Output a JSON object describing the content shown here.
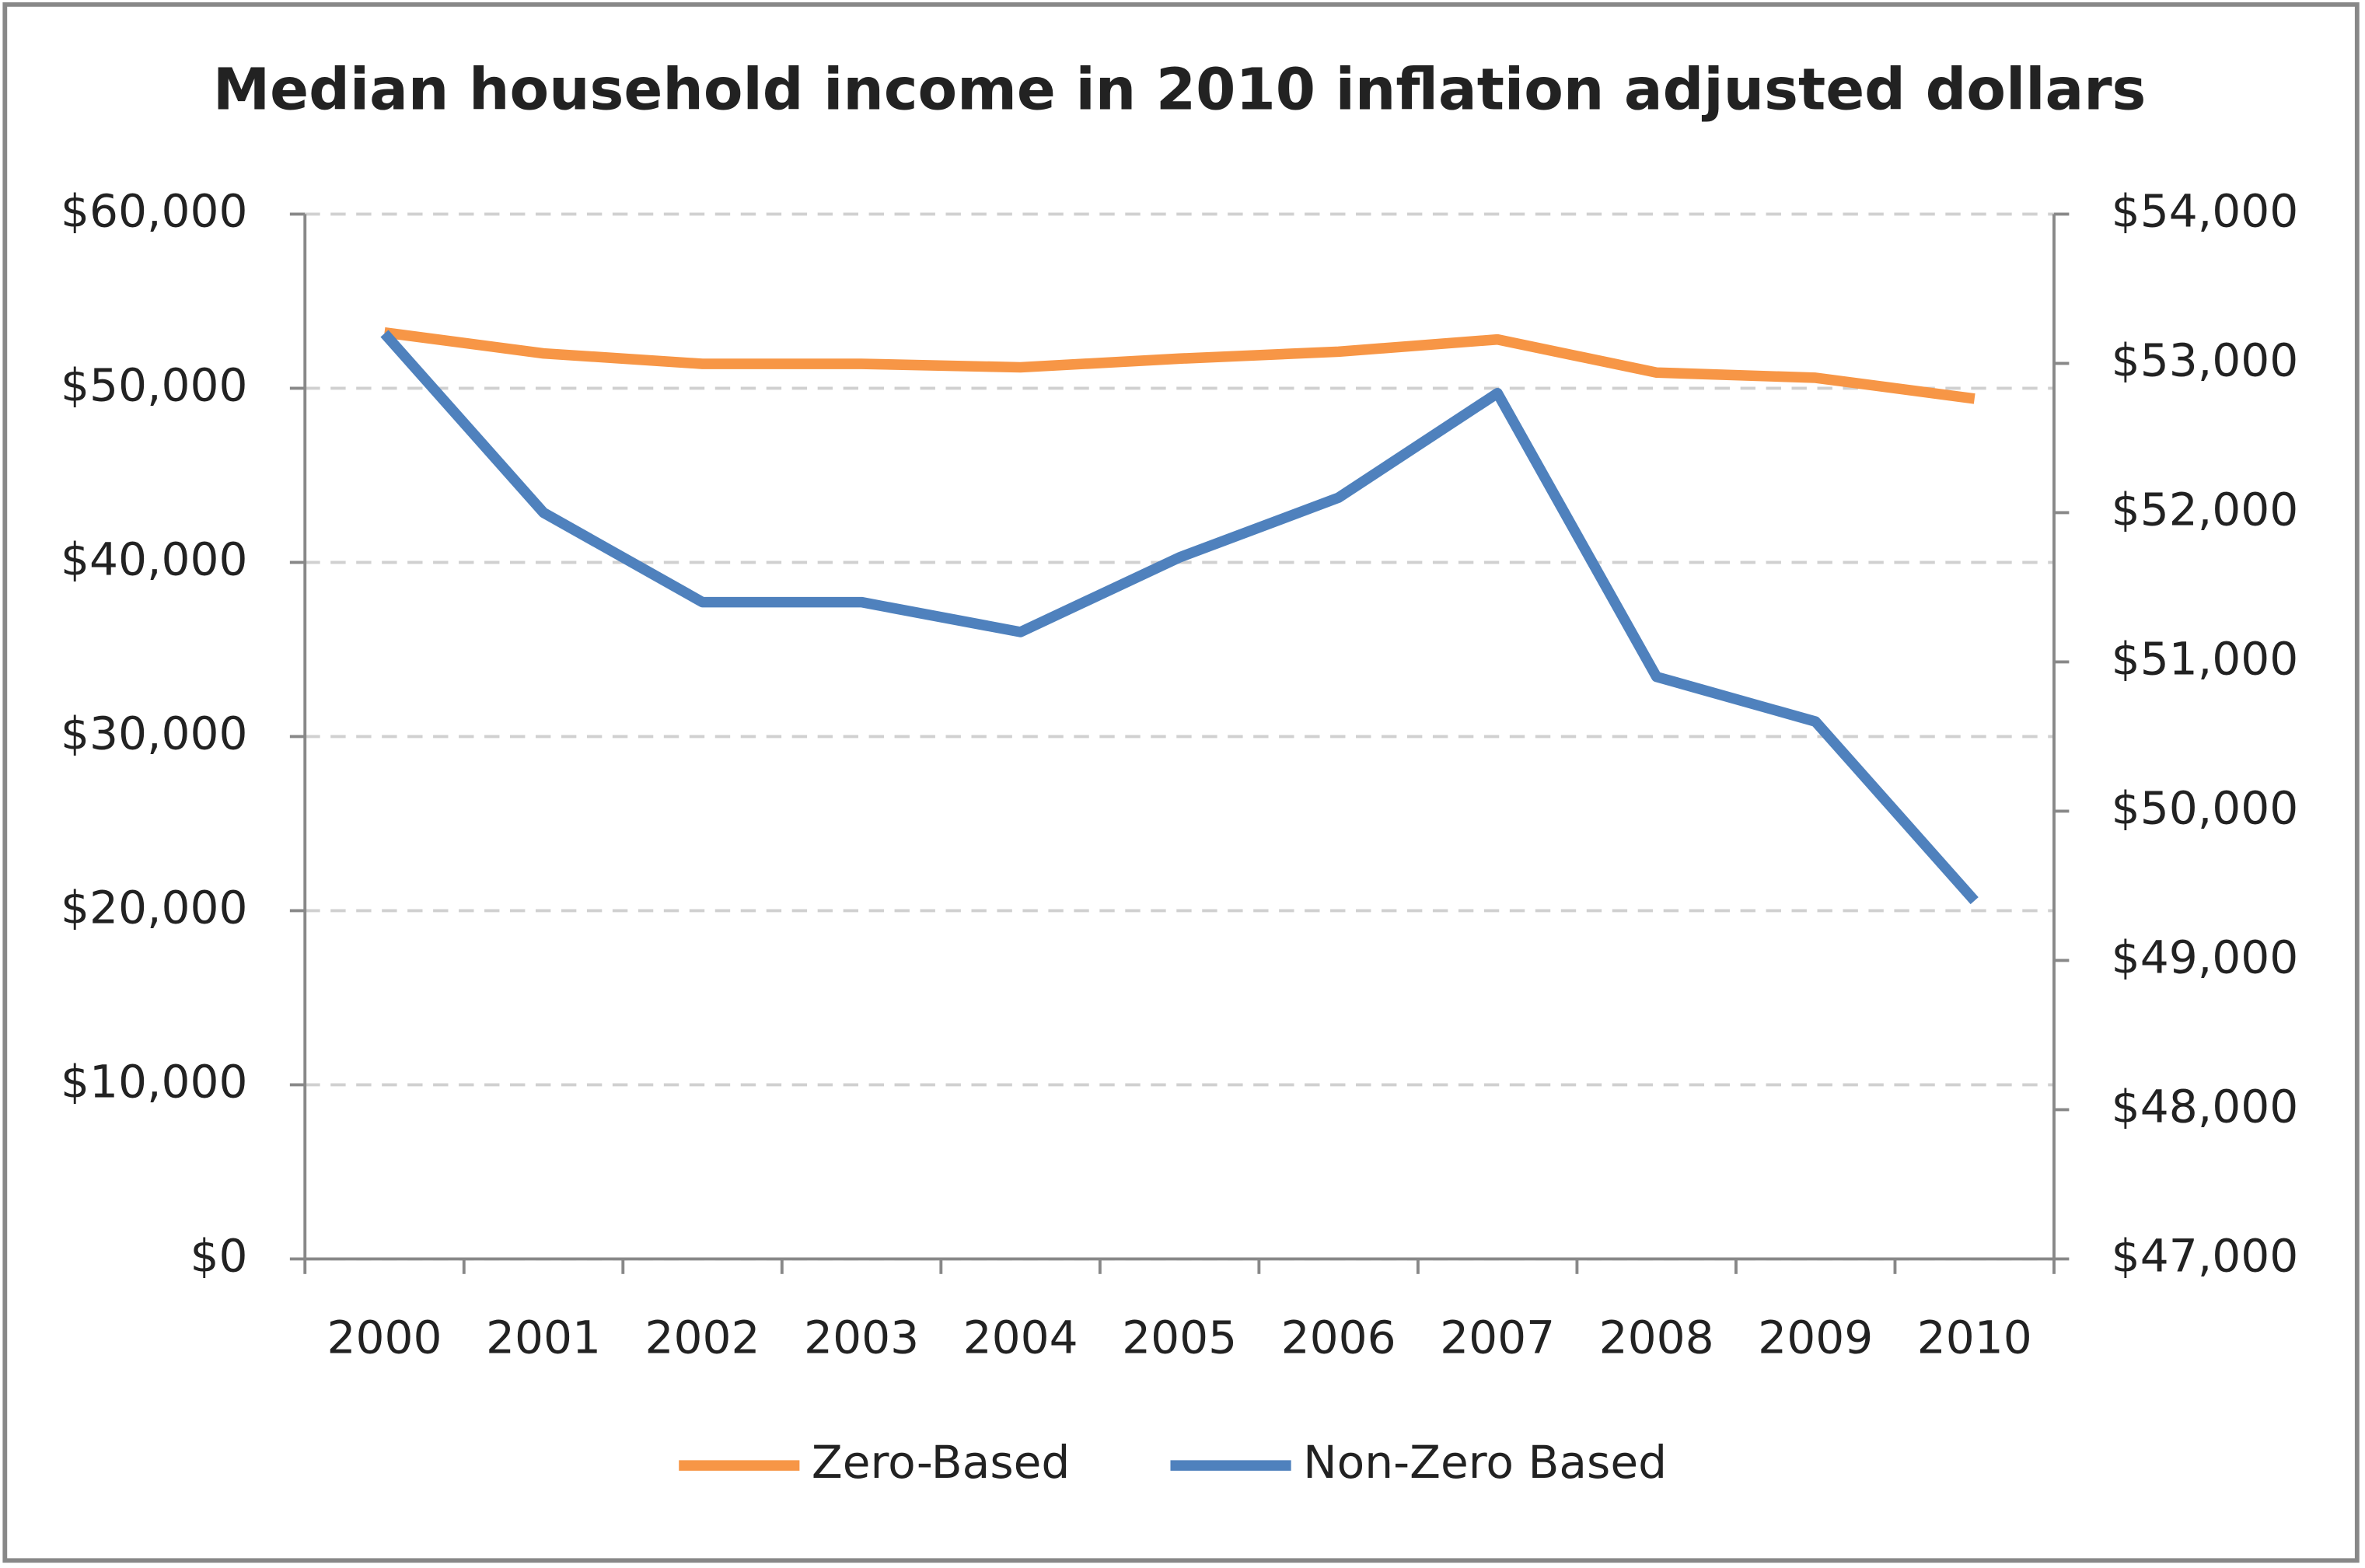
{
  "chart_data": {
    "type": "line",
    "title": "Median household income in 2010 inflation adjusted dollars",
    "categories": [
      "2000",
      "2001",
      "2002",
      "2003",
      "2004",
      "2005",
      "2006",
      "2007",
      "2008",
      "2009",
      "2010"
    ],
    "series": [
      {
        "name": "Zero-Based",
        "color": "#f79646",
        "values": [
          53200,
          52000,
          51400,
          51400,
          51200,
          51700,
          52100,
          52800,
          50900,
          50600,
          49400
        ]
      },
      {
        "name": "Non-Zero Based",
        "color": "#4f81bd",
        "axis": "y2",
        "values": [
          53200,
          52000,
          51400,
          51400,
          51200,
          51700,
          52100,
          52800,
          50900,
          50600,
          49400
        ]
      }
    ],
    "ylim": [
      0,
      60000
    ],
    "yticks": [
      {
        "value": 0,
        "label": "$0"
      },
      {
        "value": 10000,
        "label": "$10,000"
      },
      {
        "value": 20000,
        "label": "$20,000"
      },
      {
        "value": 30000,
        "label": "$30,000"
      },
      {
        "value": 40000,
        "label": "$40,000"
      },
      {
        "value": 50000,
        "label": "$50,000"
      },
      {
        "value": 60000,
        "label": "$60,000"
      }
    ],
    "y2lim": [
      47000,
      54000
    ],
    "y2ticks": [
      {
        "value": 47000,
        "label": "$47,000"
      },
      {
        "value": 48000,
        "label": "$48,000"
      },
      {
        "value": 49000,
        "label": "$49,000"
      },
      {
        "value": 50000,
        "label": "$50,000"
      },
      {
        "value": 51000,
        "label": "$51,000"
      },
      {
        "value": 52000,
        "label": "$52,000"
      },
      {
        "value": 53000,
        "label": "$53,000"
      },
      {
        "value": 54000,
        "label": "$54,000"
      }
    ],
    "grid": true,
    "legend": "bottom"
  }
}
